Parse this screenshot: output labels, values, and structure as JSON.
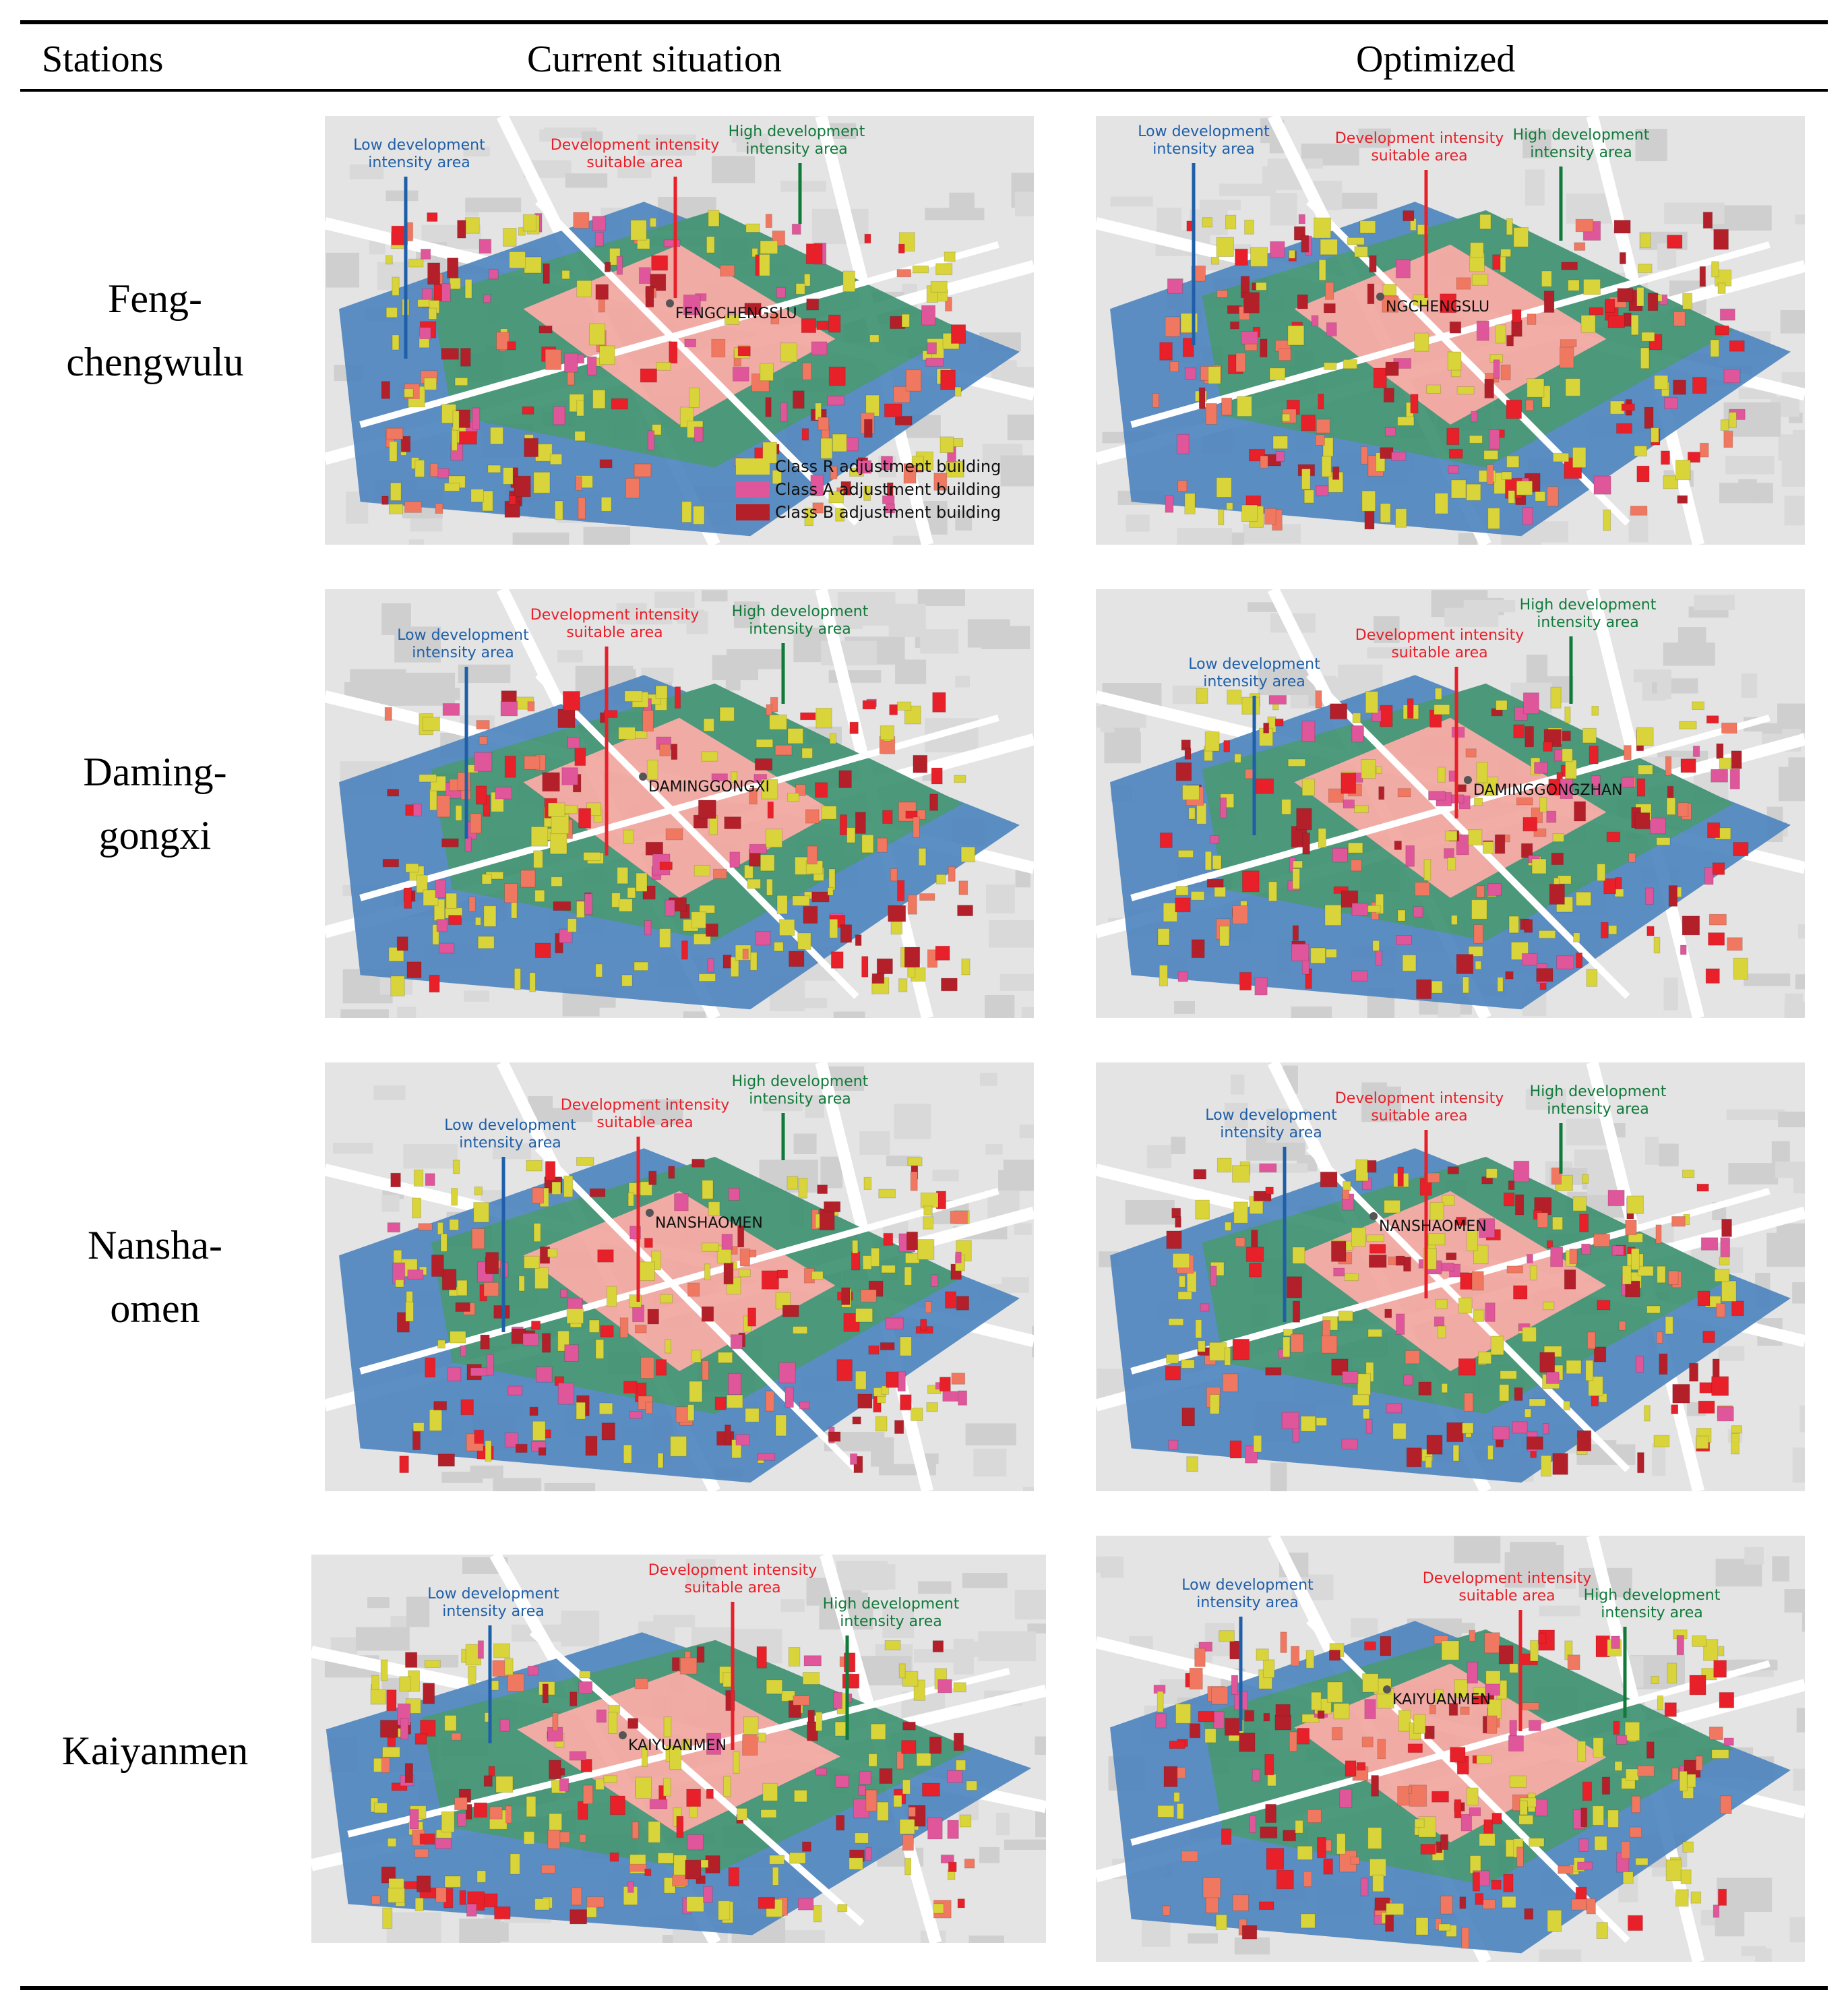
{
  "header": {
    "stations": "Stations",
    "current": "Current situation",
    "optimized": "Optimized"
  },
  "colors": {
    "low": "#4f86c0",
    "mid": "#f3a7a0",
    "high": "#3f9272",
    "classR": "#d9d43a",
    "classA": "#e0569a",
    "classB": "#b4202a"
  },
  "rows": [
    {
      "station": [
        "Feng-",
        "chengwulu"
      ],
      "current": {
        "low": [
          "Low development",
          "intensity area"
        ],
        "mid": [
          "Development intensity",
          "suitable area"
        ],
        "high": [
          "High development",
          "intensity area"
        ],
        "station_label": "FENGCHENGSLU"
      },
      "optimized": {
        "low": [
          "Low development",
          "intensity area"
        ],
        "mid": [
          "Development intensity",
          "suitable area"
        ],
        "high": [
          "High development",
          "intensity area"
        ],
        "station_label": "NGCHENGSLU"
      }
    },
    {
      "station": [
        "Daming-",
        "gongxi"
      ],
      "current": {
        "low": [
          "Low development",
          "intensity area"
        ],
        "mid": [
          "Development intensity",
          "suitable area"
        ],
        "high": [
          "High development",
          "intensity area"
        ],
        "station_label": "DAMINGGONGXI"
      },
      "optimized": {
        "low": [
          "Low development",
          "intensity area"
        ],
        "mid": [
          "Development intensity",
          "suitable area"
        ],
        "high": [
          "High development",
          "intensity area"
        ],
        "station_label": "DAMINGGONGZHAN"
      }
    },
    {
      "station": [
        "Nansha-",
        "omen"
      ],
      "current": {
        "low": [
          "Low development",
          "intensity area"
        ],
        "mid": [
          "Development intensity",
          "suitable area"
        ],
        "high": [
          "High development",
          "intensity area"
        ],
        "station_label": "NANSHAOMEN"
      },
      "optimized": {
        "low": [
          "Low development",
          "intensity area"
        ],
        "mid": [
          "Development intensity",
          "suitable area"
        ],
        "high": [
          "High development",
          "intensity area"
        ],
        "station_label": "NANSHAOMEN"
      }
    },
    {
      "station": [
        "Kaiyanmen"
      ],
      "current": {
        "low": [
          "Low development",
          "intensity area"
        ],
        "mid": [
          "Development intensity",
          "suitable area"
        ],
        "high": [
          "High development",
          "intensity area"
        ],
        "station_label": "KAIYUANMEN"
      },
      "optimized": {
        "low": [
          "Low development",
          "intensity area"
        ],
        "mid": [
          "Development intensity",
          "suitable area"
        ],
        "high": [
          "High development",
          "intensity area"
        ],
        "station_label": "KAIYUANMEN"
      }
    }
  ],
  "legend": [
    "Class R adjustment building",
    "Class A adjustment building",
    "Class B adjustment building"
  ]
}
